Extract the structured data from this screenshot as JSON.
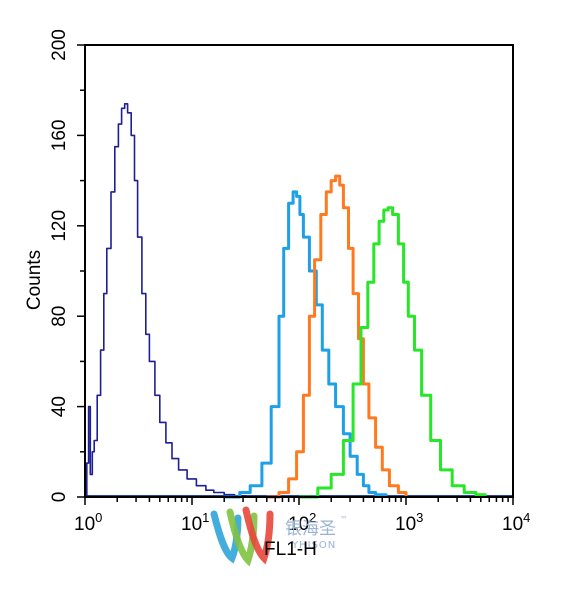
{
  "chart_data": {
    "type": "line",
    "title": "",
    "xlabel": "FL1-H",
    "ylabel": "Counts",
    "x_scale": "log",
    "xlim": [
      1,
      10000
    ],
    "ylim": [
      0,
      200
    ],
    "x_ticks": [
      {
        "base": "10",
        "exp": "0"
      },
      {
        "base": "10",
        "exp": "1"
      },
      {
        "base": "10",
        "exp": "2"
      },
      {
        "base": "10",
        "exp": "3"
      },
      {
        "base": "10",
        "exp": "4"
      }
    ],
    "y_ticks": [
      "0",
      "40",
      "80",
      "120",
      "160",
      "200"
    ],
    "grid": false,
    "legend": "none",
    "series": [
      {
        "color": "#1e1e96",
        "x": [
          1.0,
          1.04,
          1.08,
          1.12,
          1.17,
          1.22,
          1.3,
          1.4,
          1.5,
          1.6,
          1.75,
          1.9,
          2.05,
          2.2,
          2.35,
          2.5,
          2.7,
          2.9,
          3.1,
          3.4,
          3.7,
          4.0,
          4.5,
          5.0,
          5.7,
          6.5,
          7.5,
          9.0,
          11.0,
          13.5,
          16.0,
          20.0,
          25.0,
          32.0
        ],
        "y": [
          0,
          15,
          40,
          10,
          20,
          25,
          45,
          65,
          90,
          110,
          135,
          155,
          165,
          172,
          174,
          170,
          160,
          140,
          115,
          90,
          72,
          60,
          45,
          33,
          24,
          17,
          12,
          8,
          5,
          3,
          2,
          1,
          0.5,
          0
        ]
      },
      {
        "color": "#1ea0e6",
        "x": [
          20,
          28,
          35,
          45,
          55,
          65,
          72,
          80,
          88,
          95,
          102,
          110,
          125,
          145,
          165,
          190,
          220,
          260,
          300,
          350,
          400,
          450,
          520,
          650
        ],
        "y": [
          0,
          2,
          5,
          15,
          40,
          80,
          110,
          130,
          135,
          133,
          125,
          115,
          100,
          85,
          65,
          50,
          40,
          28,
          18,
          10,
          5,
          2,
          1,
          0
        ]
      },
      {
        "color": "#ff7a1e",
        "x": [
          50,
          65,
          80,
          95,
          110,
          125,
          140,
          160,
          180,
          200,
          220,
          240,
          260,
          290,
          320,
          360,
          400,
          450,
          520,
          600,
          700,
          850,
          1000
        ],
        "y": [
          0,
          2,
          8,
          20,
          45,
          80,
          105,
          125,
          135,
          140,
          142,
          138,
          128,
          110,
          90,
          70,
          50,
          35,
          22,
          12,
          5,
          2,
          0
        ]
      },
      {
        "color": "#28e628",
        "x": [
          100,
          150,
          200,
          260,
          320,
          380,
          440,
          500,
          560,
          620,
          680,
          750,
          850,
          950,
          1050,
          1200,
          1400,
          1700,
          2100,
          2700,
          3500,
          4500,
          5500
        ],
        "y": [
          0,
          4,
          10,
          25,
          50,
          75,
          95,
          112,
          122,
          127,
          128,
          125,
          112,
          95,
          80,
          65,
          45,
          25,
          12,
          5,
          2,
          1,
          0
        ]
      }
    ]
  },
  "watermark": {
    "cn": "银海圣",
    "en": "YHISON",
    "tm": "™"
  }
}
